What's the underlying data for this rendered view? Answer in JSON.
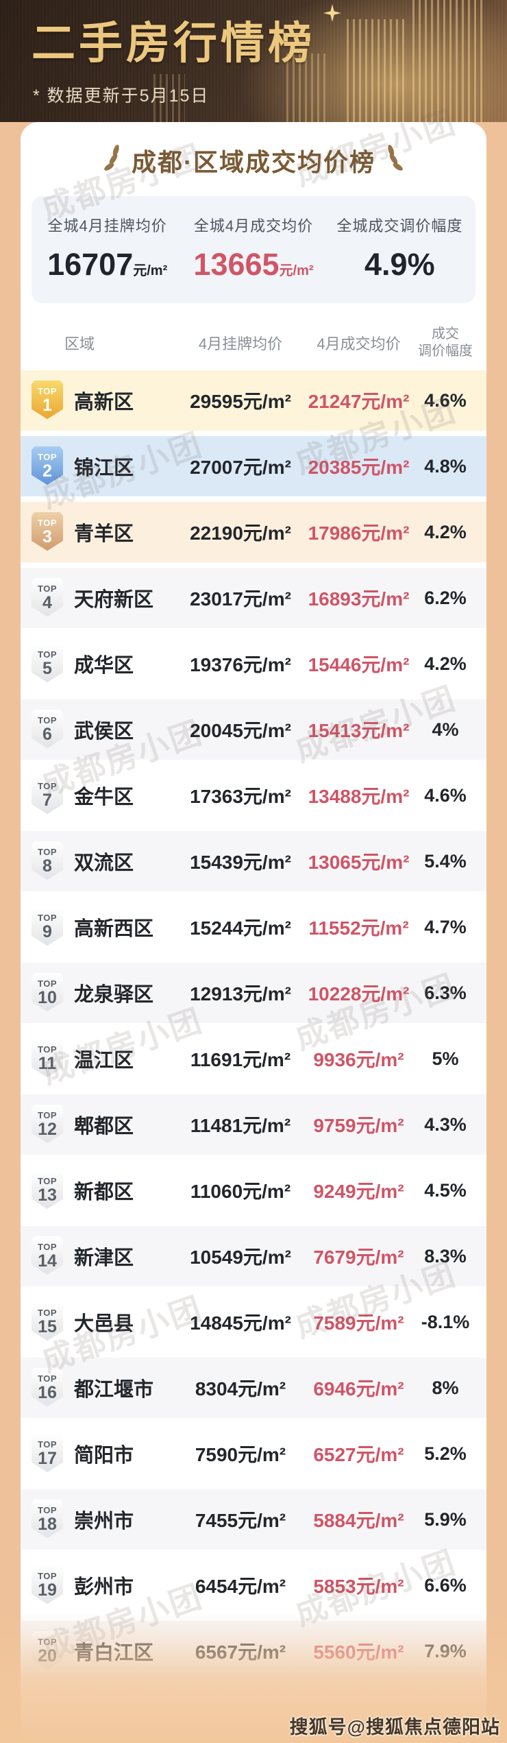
{
  "header": {
    "title": "二手房行情榜",
    "subtitle": "* 数据更新于5月15日"
  },
  "chart_data": {
    "type": "table",
    "title": "成都·区域成交均价榜",
    "columns": [
      "区域",
      "4月挂牌均价",
      "4月成交均价",
      "成交调价幅度"
    ],
    "columns_display": [
      "区域",
      "4月挂牌均价",
      "4月成交均价",
      "成交\n调价幅度"
    ],
    "price_unit": "元/m²",
    "badge_label": "TOP",
    "citywide": {
      "listing_label": "全城4月挂牌均价",
      "listing_value": "16707",
      "deal_label": "全城4月成交均价",
      "deal_value": "13665",
      "adjust_label": "全城成交调价幅度",
      "adjust_value": "4.9%"
    },
    "rows": [
      {
        "rank": 1,
        "region": "高新区",
        "listing": "29595",
        "deal": "21247",
        "adjust": "4.6%"
      },
      {
        "rank": 2,
        "region": "锦江区",
        "listing": "27007",
        "deal": "20385",
        "adjust": "4.8%"
      },
      {
        "rank": 3,
        "region": "青羊区",
        "listing": "22190",
        "deal": "17986",
        "adjust": "4.2%"
      },
      {
        "rank": 4,
        "region": "天府新区",
        "listing": "23017",
        "deal": "16893",
        "adjust": "6.2%"
      },
      {
        "rank": 5,
        "region": "成华区",
        "listing": "19376",
        "deal": "15446",
        "adjust": "4.2%"
      },
      {
        "rank": 6,
        "region": "武侯区",
        "listing": "20045",
        "deal": "15413",
        "adjust": "4%"
      },
      {
        "rank": 7,
        "region": "金牛区",
        "listing": "17363",
        "deal": "13488",
        "adjust": "4.6%"
      },
      {
        "rank": 8,
        "region": "双流区",
        "listing": "15439",
        "deal": "13065",
        "adjust": "5.4%"
      },
      {
        "rank": 9,
        "region": "高新西区",
        "listing": "15244",
        "deal": "11552",
        "adjust": "4.7%"
      },
      {
        "rank": 10,
        "region": "龙泉驿区",
        "listing": "12913",
        "deal": "10228",
        "adjust": "6.3%"
      },
      {
        "rank": 11,
        "region": "温江区",
        "listing": "11691",
        "deal": "9936",
        "adjust": "5%"
      },
      {
        "rank": 12,
        "region": "郫都区",
        "listing": "11481",
        "deal": "9759",
        "adjust": "4.3%"
      },
      {
        "rank": 13,
        "region": "新都区",
        "listing": "11060",
        "deal": "9249",
        "adjust": "4.5%"
      },
      {
        "rank": 14,
        "region": "新津区",
        "listing": "10549",
        "deal": "7679",
        "adjust": "8.3%"
      },
      {
        "rank": 15,
        "region": "大邑县",
        "listing": "14845",
        "deal": "7589",
        "adjust": "-8.1%"
      },
      {
        "rank": 16,
        "region": "都江堰市",
        "listing": "8304",
        "deal": "6946",
        "adjust": "8%"
      },
      {
        "rank": 17,
        "region": "简阳市",
        "listing": "7590",
        "deal": "6527",
        "adjust": "5.2%"
      },
      {
        "rank": 18,
        "region": "崇州市",
        "listing": "7455",
        "deal": "5884",
        "adjust": "5.9%"
      },
      {
        "rank": 19,
        "region": "彭州市",
        "listing": "6454",
        "deal": "5853",
        "adjust": "6.6%"
      },
      {
        "rank": 20,
        "region": "青白江区",
        "listing": "6567",
        "deal": "5560",
        "adjust": "7.9%"
      }
    ]
  },
  "watermark": {
    "tile_text": "成都房小团",
    "credit": "搜狐号@搜狐焦点德阳站"
  },
  "colors": {
    "page_frame": "#efc19a",
    "hero_bg": "#423024",
    "hero_gold_text": "#ecc87f",
    "card_title": "#7a5a33",
    "deal_price_red": "#cf5566",
    "badge_gold": "#e8a52f",
    "badge_blue": "#5e93d8",
    "badge_bronze": "#cf996c",
    "row_gold_bg": "#fdf4da",
    "row_blue_bg": "#dbe9f7",
    "row_bronze_bg": "#fcefdd"
  }
}
